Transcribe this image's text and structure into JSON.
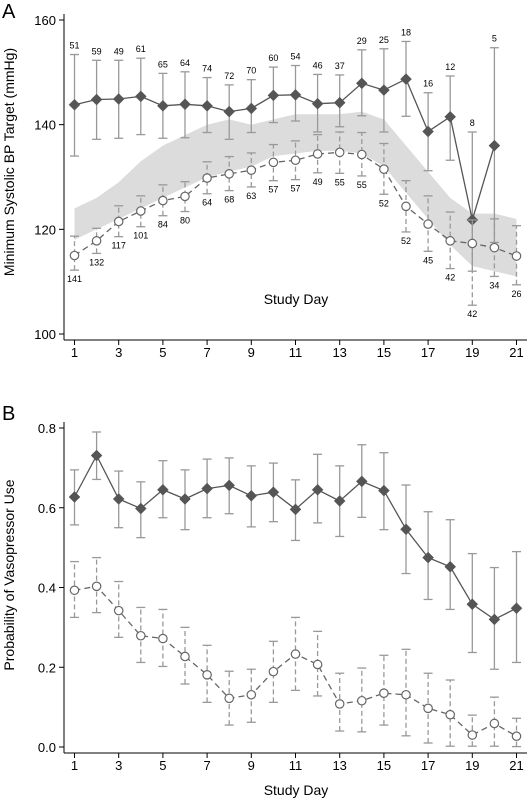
{
  "chart_data": [
    {
      "panel_label": "A",
      "type": "line",
      "ylabel": "Minimum Systolic BP Target (mmHg)",
      "xlabel": "Study Day",
      "xlim": [
        1,
        21
      ],
      "ylim": [
        100,
        160
      ],
      "x_ticks": [
        1,
        3,
        5,
        7,
        9,
        11,
        13,
        15,
        17,
        19,
        21
      ],
      "y_ticks": [
        100,
        120,
        140,
        160
      ],
      "band": {
        "x": [
          1,
          2,
          3,
          4,
          5,
          6,
          7,
          8,
          9,
          10,
          11,
          12,
          13,
          14,
          15,
          16,
          17,
          18,
          19,
          20,
          21
        ],
        "low": [
          118,
          120,
          122,
          124,
          126,
          128,
          130,
          131,
          132,
          134,
          134.5,
          135,
          135,
          134.5,
          132,
          127,
          122,
          117,
          113,
          112,
          111
        ],
        "high": [
          124,
          126,
          129,
          133,
          136,
          138,
          140,
          141,
          140,
          141,
          142,
          142,
          142,
          142.5,
          141,
          136,
          131,
          126,
          123,
          123,
          122
        ]
      },
      "series": [
        {
          "marker": "diamond",
          "line": "solid",
          "x": [
            1,
            2,
            3,
            4,
            5,
            6,
            7,
            8,
            9,
            10,
            11,
            12,
            13,
            14,
            15,
            16,
            17,
            18,
            19,
            20,
            21
          ],
          "values": [
            143.8,
            144.8,
            144.9,
            145.4,
            143.6,
            143.9,
            143.6,
            142.5,
            143.1,
            145.6,
            145.7,
            144,
            144.2,
            147.9,
            146.6,
            148.7,
            138.7,
            141.5,
            121.8,
            136,
            null
          ],
          "lower": [
            134,
            137.2,
            137.4,
            138.1,
            137.4,
            137.5,
            138.5,
            137.2,
            138.5,
            140.4,
            140.7,
            138.6,
            139.6,
            141.7,
            138.6,
            141.6,
            131.2,
            133.2,
            112,
            117.5,
            null
          ],
          "upper": [
            153.4,
            152.3,
            152.3,
            152.7,
            149.8,
            150.1,
            149,
            147.6,
            148.6,
            151,
            151.3,
            149.6,
            149.5,
            154.3,
            154.5,
            155.9,
            146.1,
            149.3,
            138.6,
            154.7,
            null
          ],
          "n_labels": [
            "51",
            "59",
            "49",
            "61",
            "65",
            "64",
            "74",
            "72",
            "70",
            "60",
            "54",
            "46",
            "37",
            "29",
            "25",
            "18",
            "16",
            "12",
            "8",
            "5",
            ""
          ]
        },
        {
          "marker": "circle",
          "line": "dashed",
          "x": [
            1,
            2,
            3,
            4,
            5,
            6,
            7,
            8,
            9,
            10,
            11,
            12,
            13,
            14,
            15,
            16,
            17,
            18,
            19,
            20,
            21
          ],
          "values": [
            115,
            117.8,
            121.5,
            123.5,
            125.5,
            126.3,
            129.8,
            130.6,
            131.3,
            132.8,
            133.2,
            134.4,
            134.7,
            134.3,
            131.5,
            124.4,
            121,
            117.8,
            117.3,
            116.5,
            114.9
          ],
          "lower": [
            112.2,
            115.4,
            118.6,
            120.5,
            122.6,
            123.4,
            126.8,
            127.4,
            128.1,
            129.3,
            129.5,
            130.8,
            130.7,
            130.2,
            126.7,
            119.5,
            115.8,
            112.5,
            105.5,
            111,
            109.4
          ],
          "upper": [
            118.7,
            120.2,
            124.5,
            126.4,
            128.5,
            129.1,
            132.9,
            133.9,
            134.6,
            136.2,
            136.9,
            138.1,
            138.6,
            138.5,
            136.4,
            129.3,
            126.4,
            123.3,
            121.8,
            122,
            120.7
          ],
          "n_labels": [
            "141",
            "132",
            "117",
            "101",
            "84",
            "80",
            "64",
            "68",
            "63",
            "57",
            "57",
            "49",
            "55",
            "55",
            "52",
            "52",
            "45",
            "42",
            "42",
            "34",
            "26"
          ]
        }
      ]
    },
    {
      "panel_label": "B",
      "type": "line",
      "ylabel": "Probability of Vasopressor Use",
      "xlabel": "Study Day",
      "xlim": [
        1,
        21
      ],
      "ylim": [
        0,
        0.8
      ],
      "x_ticks": [
        1,
        3,
        5,
        7,
        9,
        11,
        13,
        15,
        17,
        19,
        21
      ],
      "y_ticks": [
        0.0,
        0.2,
        0.4,
        0.6,
        0.8
      ],
      "y_tick_labels": [
        "0.0",
        "0.2",
        "0.4",
        "0.6",
        "0.8"
      ],
      "series": [
        {
          "marker": "diamond",
          "line": "solid",
          "x": [
            1,
            2,
            3,
            4,
            5,
            6,
            7,
            8,
            9,
            10,
            11,
            12,
            13,
            14,
            15,
            16,
            17,
            18,
            19,
            20,
            21
          ],
          "values": [
            0.627,
            0.731,
            0.622,
            0.598,
            0.645,
            0.622,
            0.648,
            0.656,
            0.63,
            0.639,
            0.596,
            0.645,
            0.617,
            0.666,
            0.643,
            0.546,
            0.475,
            0.452,
            0.358,
            0.32,
            0.348
          ],
          "lower": [
            0.557,
            0.671,
            0.55,
            0.525,
            0.575,
            0.545,
            0.575,
            0.585,
            0.552,
            0.565,
            0.518,
            0.562,
            0.528,
            0.576,
            0.545,
            0.435,
            0.37,
            0.345,
            0.237,
            0.195,
            0.212
          ],
          "upper": [
            0.695,
            0.79,
            0.692,
            0.665,
            0.718,
            0.695,
            0.722,
            0.725,
            0.705,
            0.712,
            0.67,
            0.734,
            0.705,
            0.758,
            0.738,
            0.657,
            0.59,
            0.57,
            0.485,
            0.45,
            0.49
          ]
        },
        {
          "marker": "circle",
          "line": "dashed",
          "x": [
            1,
            2,
            3,
            4,
            5,
            6,
            7,
            8,
            9,
            10,
            11,
            12,
            13,
            14,
            15,
            16,
            17,
            18,
            19,
            20,
            21
          ],
          "values": [
            0.393,
            0.403,
            0.342,
            0.279,
            0.272,
            0.227,
            0.181,
            0.122,
            0.131,
            0.189,
            0.233,
            0.207,
            0.108,
            0.116,
            0.135,
            0.131,
            0.097,
            0.081,
            0.03,
            0.059,
            0.027
          ],
          "lower": [
            0.325,
            0.337,
            0.275,
            0.212,
            0.202,
            0.158,
            0.112,
            0.055,
            0.062,
            0.112,
            0.142,
            0.128,
            0.04,
            0.038,
            0.055,
            0.028,
            0.01,
            0.002,
            0.002,
            0.002,
            0.001
          ],
          "upper": [
            0.465,
            0.475,
            0.415,
            0.35,
            0.345,
            0.3,
            0.255,
            0.19,
            0.195,
            0.265,
            0.325,
            0.29,
            0.185,
            0.198,
            0.23,
            0.245,
            0.185,
            0.168,
            0.08,
            0.125,
            0.072
          ]
        }
      ]
    }
  ],
  "colors": {
    "diamond": "#555555",
    "circle": "#666666",
    "errorbar": "#999999",
    "band": "#dcdcdc",
    "axis": "#000000"
  }
}
